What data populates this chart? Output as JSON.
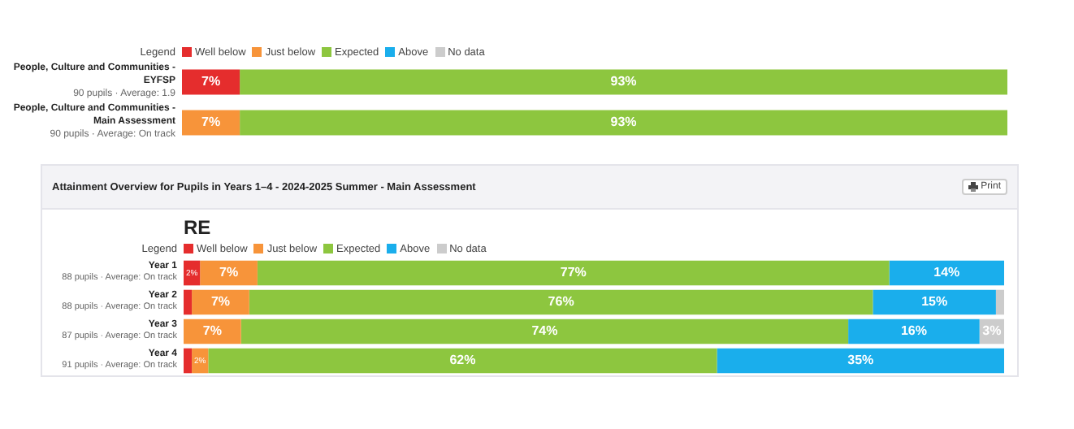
{
  "chart_data": [
    {
      "type": "bar",
      "orientation": "horizontal",
      "stacked": true,
      "legend": "top",
      "legend_title": "Legend",
      "tick_labels": "y",
      "categories": [
        "People, Culture and Communities - EYFSP",
        "People, Culture and Communities - Main Assessment"
      ],
      "annotations": [
        "90 pupils · Average: 1.9",
        "90 pupils · Average: On track"
      ],
      "series": [
        {
          "name": "Well below",
          "color": "#e52d2d",
          "values": [
            7,
            0
          ],
          "value_labels": [
            "7%",
            null
          ]
        },
        {
          "name": "Just below",
          "color": "#f7943a",
          "values": [
            0,
            7
          ],
          "value_labels": [
            null,
            "7%"
          ]
        },
        {
          "name": "Expected",
          "color": "#8dc63f",
          "values": [
            93,
            93
          ],
          "value_labels": [
            "93%",
            "93%"
          ]
        },
        {
          "name": "Above",
          "color": "#1aaeec",
          "values": [
            0,
            0
          ],
          "value_labels": [
            null,
            null
          ]
        },
        {
          "name": "No data",
          "color": "#cccccc",
          "values": [
            0,
            0
          ],
          "value_labels": [
            null,
            null
          ]
        }
      ]
    },
    {
      "type": "bar",
      "orientation": "horizontal",
      "stacked": true,
      "legend": "top",
      "legend_title": "Legend",
      "tick_labels": "y",
      "title": "Attainment Overview for Pupils in Years 1–4 - 2024-2025 Summer - Main Assessment",
      "subtitle": "RE",
      "categories": [
        "Year 1",
        "Year 2",
        "Year 3",
        "Year 4"
      ],
      "annotations": [
        "88 pupils · Average: On track",
        "88 pupils · Average: On track",
        "87 pupils · Average: On track",
        "91 pupils · Average: On track",
        "Print"
      ],
      "series": [
        {
          "name": "Well below",
          "color": "#e52d2d",
          "values": [
            2,
            1,
            0,
            1
          ],
          "value_labels": [
            "2%",
            null,
            null,
            null
          ]
        },
        {
          "name": "Just below",
          "color": "#f7943a",
          "values": [
            7,
            7,
            7,
            2
          ],
          "value_labels": [
            "7%",
            "7%",
            "7%",
            "2%"
          ]
        },
        {
          "name": "Expected",
          "color": "#8dc63f",
          "values": [
            77,
            76,
            74,
            62
          ],
          "value_labels": [
            "77%",
            "76%",
            "74%",
            "62%"
          ]
        },
        {
          "name": "Above",
          "color": "#1aaeec",
          "values": [
            14,
            15,
            16,
            35
          ],
          "value_labels": [
            "14%",
            "15%",
            "16%",
            "35%"
          ]
        },
        {
          "name": "No data",
          "color": "#cccccc",
          "values": [
            0,
            1,
            3,
            0
          ],
          "value_labels": [
            null,
            null,
            "3%",
            null
          ]
        }
      ]
    }
  ]
}
